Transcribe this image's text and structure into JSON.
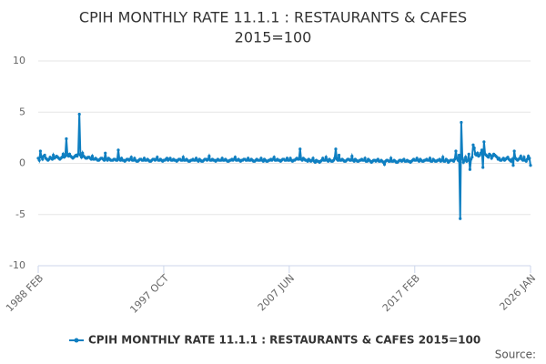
{
  "chart_data": {
    "type": "line",
    "title_lines": [
      "CPIH MONTHLY RATE 11.1.1 : RESTAURANTS & CAFES",
      "2015=100"
    ],
    "source": "Source:",
    "ylim": [
      -10,
      10
    ],
    "yticks": [
      -10,
      -5,
      0,
      5,
      10
    ],
    "grid": true,
    "legend": "bottom",
    "categories": [
      "1988 FEB",
      null,
      null,
      null,
      null,
      null,
      null,
      null,
      null,
      null,
      null,
      null,
      null,
      null,
      null,
      null,
      null,
      null,
      null,
      null,
      null,
      null,
      null,
      null,
      null,
      null,
      null,
      null,
      null,
      null,
      null,
      null,
      null,
      null,
      null,
      null,
      null,
      null,
      null,
      null,
      null,
      null,
      null,
      null,
      null,
      null,
      null,
      null,
      null,
      null,
      null,
      null,
      null,
      null,
      null,
      null,
      null,
      null,
      null,
      null,
      null,
      null,
      null,
      null,
      null,
      null,
      null,
      null,
      null,
      null,
      null,
      null,
      null,
      null,
      null,
      null,
      null,
      null,
      null,
      null,
      null,
      null,
      null,
      null,
      null,
      null,
      null,
      null,
      null,
      null,
      null,
      null,
      null,
      null,
      null,
      null,
      null,
      null,
      null,
      null,
      null,
      null,
      null,
      null,
      null,
      null,
      null,
      null,
      null,
      null,
      null,
      null,
      null,
      null,
      null,
      null,
      "1997 OCT",
      null,
      null,
      null,
      null,
      null,
      null,
      null,
      null,
      null,
      null,
      null,
      null,
      null,
      null,
      null,
      null,
      null,
      null,
      null,
      null,
      null,
      null,
      null,
      null,
      null,
      null,
      null,
      null,
      null,
      null,
      null,
      null,
      null,
      null,
      null,
      null,
      null,
      null,
      null,
      null,
      null,
      null,
      null,
      null,
      null,
      null,
      null,
      null,
      null,
      null,
      null,
      null,
      null,
      null,
      null,
      null,
      null,
      null,
      null,
      null,
      null,
      null,
      null,
      null,
      null,
      null,
      null,
      null,
      null,
      null,
      null,
      null,
      null,
      null,
      null,
      null,
      null,
      null,
      null,
      null,
      null,
      null,
      null,
      null,
      null,
      null,
      null,
      null,
      null,
      null,
      null,
      null,
      null,
      null,
      null,
      null,
      null,
      null,
      null,
      null,
      null,
      null,
      null,
      null,
      null,
      null,
      null,
      null,
      null,
      null,
      null,
      null,
      null,
      null,
      null,
      "2007 JUN",
      null,
      null,
      null,
      null,
      null,
      null,
      null,
      null,
      null,
      null,
      null,
      null,
      null,
      null,
      null,
      null,
      null,
      null,
      null,
      null,
      null,
      null,
      null,
      null,
      null,
      null,
      null,
      null,
      null,
      null,
      null,
      null,
      null,
      null,
      null,
      null,
      null,
      null,
      null,
      null,
      null,
      null,
      null,
      null,
      null,
      null,
      null,
      null,
      null,
      null,
      null,
      null,
      null,
      null,
      null,
      null,
      null,
      null,
      null,
      null,
      null,
      null,
      null,
      null,
      null,
      null,
      null,
      null,
      null,
      null,
      null,
      null,
      null,
      null,
      null,
      null,
      null,
      null,
      null,
      null,
      null,
      null,
      null,
      null,
      null,
      null,
      null,
      null,
      null,
      null,
      null,
      null,
      null,
      null,
      null,
      null,
      null,
      null,
      null,
      null,
      null,
      null,
      null,
      null,
      null,
      null,
      null,
      null,
      null,
      null,
      null,
      null,
      null,
      null,
      null,
      "2017 FEB",
      null,
      null,
      null,
      null,
      null,
      null,
      null,
      null,
      null,
      null,
      null,
      null,
      null,
      null,
      null,
      null,
      null,
      null,
      null,
      null,
      null,
      null,
      null,
      null,
      null,
      null,
      null,
      null,
      null,
      null,
      null,
      null,
      null,
      null,
      null,
      null,
      null,
      null,
      null,
      null,
      null,
      null,
      null,
      null,
      null,
      null,
      null,
      null,
      null,
      null,
      null,
      null,
      null,
      null,
      null,
      null,
      null,
      null,
      null,
      null,
      null,
      null,
      null,
      null,
      null,
      null,
      null,
      null,
      null,
      null,
      null,
      null,
      null,
      null,
      null,
      null,
      null,
      null,
      null,
      null,
      null,
      null,
      null,
      null,
      null,
      null,
      null,
      null,
      null,
      null,
      null,
      null,
      null,
      null,
      null,
      null,
      null,
      null,
      null,
      null,
      null,
      null,
      null,
      null,
      null,
      null,
      "2026 JAN"
    ],
    "series": [
      {
        "name": "CPIH MONTHLY RATE 11.1.1 : RESTAURANTS & CAFES 2015=100",
        "color": "#0f7fc1",
        "values": [
          0.5,
          0.3,
          1.2,
          0.6,
          0.4,
          0.7,
          0.8,
          0.5,
          0.4,
          0.3,
          0.4,
          0.6,
          0.5,
          0.4,
          0.8,
          0.5,
          0.6,
          0.7,
          0.6,
          0.5,
          0.4,
          0.5,
          0.6,
          0.9,
          0.6,
          0.7,
          2.4,
          0.8,
          0.7,
          0.9,
          0.7,
          0.6,
          0.5,
          0.6,
          0.7,
          0.8,
          0.7,
          0.9,
          4.8,
          0.8,
          0.6,
          1.0,
          0.7,
          0.6,
          0.5,
          0.5,
          0.6,
          0.6,
          0.5,
          0.4,
          0.7,
          0.4,
          0.4,
          0.5,
          0.4,
          0.3,
          0.3,
          0.4,
          0.5,
          0.5,
          0.4,
          0.3,
          1.0,
          0.4,
          0.3,
          0.5,
          0.4,
          0.3,
          0.3,
          0.3,
          0.4,
          0.4,
          0.3,
          0.3,
          1.3,
          0.4,
          0.3,
          0.5,
          0.3,
          0.3,
          0.2,
          0.3,
          0.4,
          0.4,
          0.3,
          0.4,
          0.6,
          0.3,
          0.3,
          0.5,
          0.3,
          0.2,
          0.2,
          0.3,
          0.4,
          0.4,
          0.3,
          0.3,
          0.5,
          0.3,
          0.3,
          0.4,
          0.3,
          0.2,
          0.2,
          0.3,
          0.4,
          0.4,
          0.3,
          0.4,
          0.6,
          0.3,
          0.3,
          0.4,
          0.3,
          0.2,
          0.3,
          0.3,
          0.4,
          0.5,
          0.3,
          0.4,
          0.5,
          0.3,
          0.3,
          0.4,
          0.3,
          0.3,
          0.2,
          0.3,
          0.4,
          0.4,
          0.3,
          0.3,
          0.6,
          0.3,
          0.3,
          0.4,
          0.3,
          0.2,
          0.2,
          0.3,
          0.3,
          0.4,
          0.3,
          0.3,
          0.5,
          0.3,
          0.2,
          0.4,
          0.3,
          0.2,
          0.2,
          0.3,
          0.4,
          0.4,
          0.3,
          0.4,
          0.7,
          0.3,
          0.3,
          0.4,
          0.3,
          0.3,
          0.2,
          0.3,
          0.4,
          0.3,
          0.3,
          0.3,
          0.5,
          0.3,
          0.3,
          0.4,
          0.3,
          0.2,
          0.2,
          0.3,
          0.3,
          0.4,
          0.3,
          0.4,
          0.6,
          0.3,
          0.3,
          0.4,
          0.3,
          0.2,
          0.3,
          0.3,
          0.4,
          0.4,
          0.3,
          0.3,
          0.5,
          0.3,
          0.3,
          0.4,
          0.3,
          0.2,
          0.2,
          0.3,
          0.4,
          0.3,
          0.3,
          0.3,
          0.5,
          0.3,
          0.2,
          0.4,
          0.3,
          0.2,
          0.2,
          0.3,
          0.3,
          0.4,
          0.3,
          0.4,
          0.6,
          0.3,
          0.3,
          0.4,
          0.3,
          0.3,
          0.2,
          0.3,
          0.4,
          0.4,
          0.3,
          0.3,
          0.5,
          0.3,
          0.3,
          0.5,
          0.3,
          0.2,
          0.3,
          0.3,
          0.4,
          0.5,
          0.4,
          0.4,
          1.4,
          0.4,
          0.3,
          0.5,
          0.4,
          0.3,
          0.3,
          0.2,
          0.4,
          0.3,
          0.2,
          0.3,
          0.5,
          0.2,
          0.1,
          0.3,
          0.2,
          0.2,
          0.1,
          0.2,
          0.3,
          0.5,
          0.3,
          0.3,
          0.6,
          0.3,
          0.2,
          0.4,
          0.3,
          0.2,
          0.2,
          0.3,
          0.5,
          1.4,
          0.4,
          0.3,
          0.8,
          0.3,
          0.3,
          0.4,
          0.3,
          0.2,
          0.2,
          0.3,
          0.4,
          0.4,
          0.3,
          0.3,
          0.7,
          0.3,
          0.2,
          0.4,
          0.3,
          0.2,
          0.2,
          0.3,
          0.3,
          0.4,
          0.3,
          0.3,
          0.5,
          0.2,
          0.2,
          0.4,
          0.3,
          0.2,
          0.1,
          0.2,
          0.3,
          0.3,
          0.2,
          0.3,
          0.4,
          0.2,
          0.2,
          0.3,
          0.2,
          0.1,
          -0.1,
          0.2,
          0.3,
          0.3,
          0.2,
          0.2,
          0.5,
          0.2,
          0.2,
          0.3,
          0.2,
          0.1,
          0.1,
          0.2,
          0.3,
          0.3,
          0.2,
          0.3,
          0.4,
          0.2,
          0.2,
          0.3,
          0.2,
          0.2,
          0.1,
          0.2,
          0.3,
          0.4,
          0.3,
          0.3,
          0.5,
          0.3,
          0.2,
          0.4,
          0.3,
          0.2,
          0.2,
          0.3,
          0.3,
          0.4,
          0.3,
          0.3,
          0.5,
          0.2,
          0.2,
          0.4,
          0.3,
          0.2,
          0.2,
          0.3,
          0.3,
          0.4,
          0.2,
          0.3,
          0.6,
          0.2,
          0.2,
          0.4,
          0.3,
          0.1,
          0.2,
          0.3,
          0.3,
          0.3,
          0.2,
          0.4,
          1.2,
          0.5,
          0.3,
          0.8,
          -5.4,
          4.0,
          0.5,
          0.1,
          0.3,
          0.6,
          0.2,
          0.3,
          0.9,
          -0.6,
          0.4,
          0.6,
          1.8,
          1.5,
          0.9,
          0.8,
          1.0,
          0.7,
          0.8,
          1.0,
          1.3,
          -0.4,
          2.1,
          0.9,
          0.8,
          0.7,
          0.6,
          0.9,
          0.8,
          0.5,
          0.7,
          0.9,
          0.8,
          0.7,
          0.6,
          0.4,
          0.5,
          0.3,
          0.3,
          0.4,
          0.5,
          0.3,
          0.4,
          0.5,
          0.6,
          0.4,
          0.3,
          0.2,
          0.4,
          -0.2,
          1.2,
          0.5,
          0.4,
          0.3,
          0.4,
          0.5,
          0.7,
          0.4,
          0.3,
          0.6,
          0.3,
          0.2,
          0.4,
          0.7,
          0.5,
          -0.2
        ]
      }
    ]
  }
}
